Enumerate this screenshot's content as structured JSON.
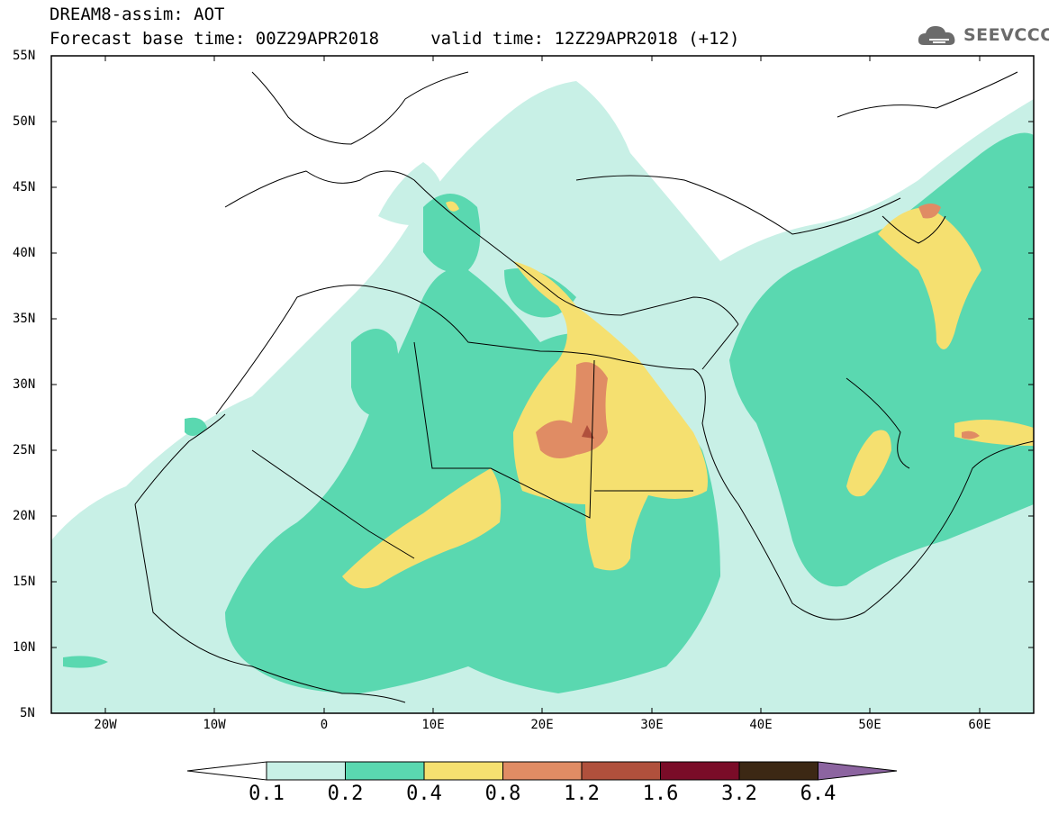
{
  "header": {
    "title_line1": "DREAM8-assim: AOT",
    "title_line2": "Forecast base time: 00Z29APR2018     valid time: 12Z29APR2018 (+12)"
  },
  "logo": {
    "text": "SEEVCCC",
    "icon": "cloud-icon"
  },
  "map": {
    "lat_labels": [
      "55N",
      "50N",
      "45N",
      "40N",
      "35N",
      "30N",
      "25N",
      "20N",
      "15N",
      "10N",
      "5N"
    ],
    "lon_labels": [
      "20W",
      "10W",
      "0",
      "10E",
      "20E",
      "30E",
      "40E",
      "50E",
      "60E"
    ],
    "lat_range": [
      5,
      55
    ],
    "lon_range": [
      -25,
      65
    ]
  },
  "colorbar": {
    "labels": [
      "0.1",
      "0.2",
      "0.4",
      "0.8",
      "1.2",
      "1.6",
      "3.2",
      "6.4"
    ],
    "colors": [
      "#ffffff",
      "#c8f0e6",
      "#5ad8b0",
      "#f5e070",
      "#e08c64",
      "#b0503c",
      "#7a0c28",
      "#3c2814",
      "#8c64a0"
    ]
  }
}
